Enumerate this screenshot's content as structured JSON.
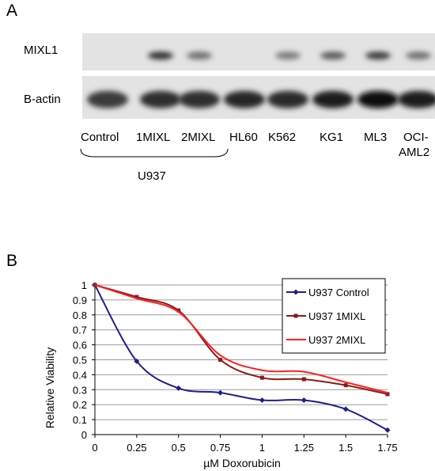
{
  "figure": {
    "panel_a": {
      "label": "A",
      "rows": [
        {
          "label": "MIXL1",
          "band_intensities": [
            0,
            0.85,
            0.55,
            0,
            0.5,
            0.65,
            0.8,
            0.55
          ]
        },
        {
          "label": "B-actin",
          "band_intensities": [
            0.8,
            0.85,
            0.85,
            0.9,
            0.88,
            0.95,
            1.0,
            0.95
          ]
        }
      ],
      "lanes": [
        "Control",
        "1MIXL",
        "2MIXL",
        "HL60",
        "K562",
        "KG1",
        "ML3",
        "OCI-",
        "AML2"
      ],
      "group_label": "U937"
    },
    "panel_b": {
      "label": "B"
    }
  },
  "chart_data": {
    "type": "line",
    "title": "",
    "xlabel": "µM Doxorubicin",
    "ylabel": "Relative Viability",
    "xlim": [
      0,
      1.75
    ],
    "ylim": [
      0,
      1
    ],
    "x": [
      0,
      0.25,
      0.5,
      0.75,
      1,
      1.25,
      1.5,
      1.75
    ],
    "x_ticks": [
      "0",
      "0.25",
      "0.5",
      "0.75",
      "1",
      "1.25",
      "1.5",
      "1.75"
    ],
    "y_ticks": [
      "0",
      "0.1",
      "0.2",
      "0.3",
      "0.4",
      "0.5",
      "0.6",
      "0.7",
      "0.8",
      "0.9",
      "1"
    ],
    "grid": "horizontal",
    "legend_position": "top-right",
    "series": [
      {
        "name": "U937 Control",
        "color": "#1f1f8c",
        "marker": "diamond",
        "values": [
          1,
          0.49,
          0.31,
          0.28,
          0.23,
          0.23,
          0.17,
          0.03
        ]
      },
      {
        "name": "U937 1MIXL",
        "color": "#8b1a1a",
        "marker": "square",
        "values": [
          1,
          0.92,
          0.83,
          0.5,
          0.38,
          0.37,
          0.33,
          0.27
        ]
      },
      {
        "name": "U937 2MIXL",
        "color": "#ff2020",
        "marker": "none",
        "values": [
          1,
          0.91,
          0.82,
          0.53,
          0.43,
          0.42,
          0.35,
          0.28
        ]
      }
    ]
  }
}
